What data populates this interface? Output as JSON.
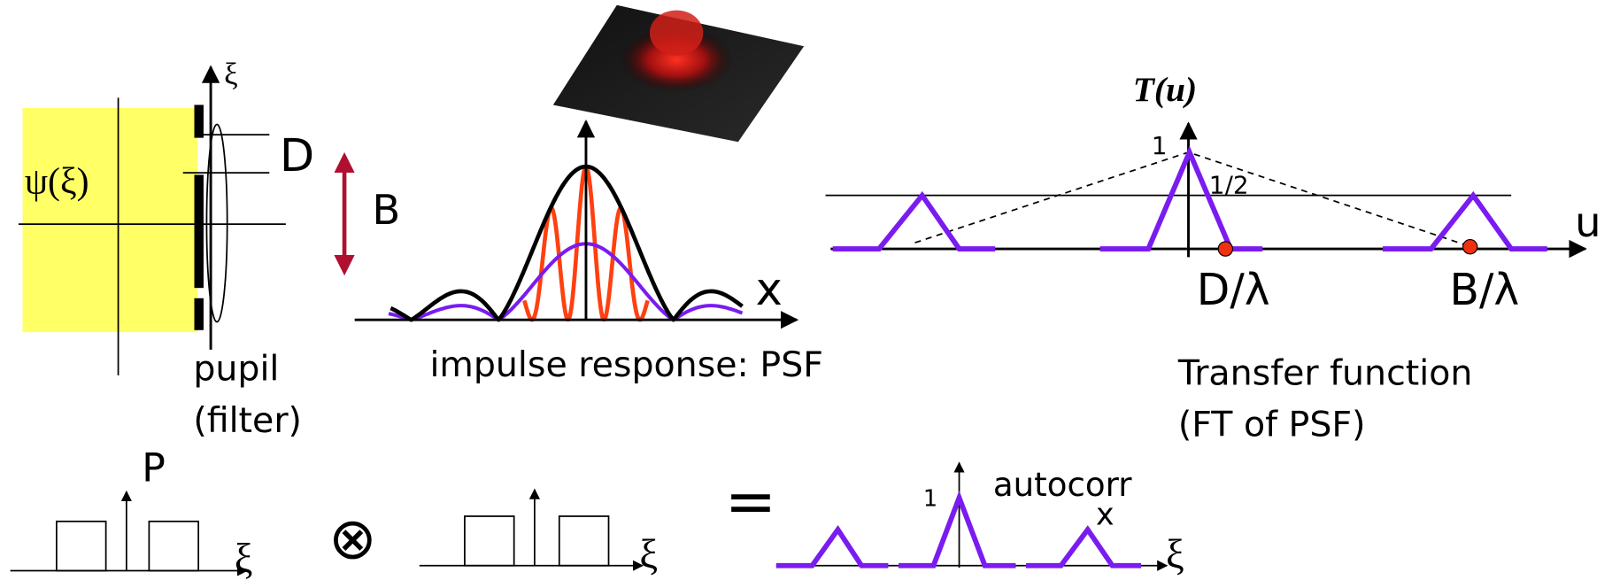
{
  "pupil_panel": {
    "axis_label": "ξ",
    "field_label": "ψ(ξ)",
    "aperture_label": "D",
    "baseline_label": "B",
    "caption": [
      "pupil",
      "(filter)"
    ]
  },
  "psf_panel": {
    "axis_label": "x",
    "caption": "impulse response: PSF"
  },
  "transfer_panel": {
    "title": "T(u)",
    "peak_label": "1",
    "half_label": "1/2",
    "axis_label": "u",
    "marker_labels": [
      "D/λ",
      "B/λ"
    ],
    "caption": [
      "Transfer function",
      "(FT of PSF)"
    ]
  },
  "equation": {
    "function_label": "P",
    "operand_axis_labels": [
      "ξ",
      "ξ"
    ],
    "operator": "⊗",
    "equals": "=",
    "result_peak_label": "1",
    "result_label": "autocorr",
    "result_mark": "x",
    "result_axis_label": "ξ"
  }
}
